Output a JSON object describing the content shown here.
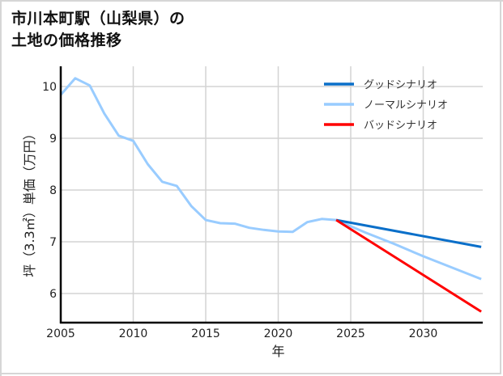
{
  "title": {
    "line1": "市川本町駅（山梨県）の",
    "line2": "土地の価格推移"
  },
  "chart_data": {
    "type": "line",
    "title": "市川本町駅（山梨県）の土地の価格推移",
    "xlabel": "年",
    "ylabel": "坪（3.3㎡）単価（万円）",
    "xlim": [
      2005,
      2034
    ],
    "ylim": [
      5.4,
      10.4
    ],
    "x_ticks": [
      2005,
      2010,
      2015,
      2020,
      2025,
      2030
    ],
    "y_ticks": [
      6,
      7,
      8,
      9,
      10
    ],
    "grid": true,
    "legend_position": "upper right",
    "series": [
      {
        "name": "グッドシナリオ",
        "color": "#0a6fc9",
        "x": [
          2024,
          2034
        ],
        "values": [
          7.42,
          6.9
        ]
      },
      {
        "name": "ノーマルシナリオ",
        "color": "#99ccff",
        "x": [
          2005,
          2006,
          2007,
          2008,
          2009,
          2010,
          2011,
          2012,
          2013,
          2014,
          2015,
          2016,
          2017,
          2018,
          2019,
          2020,
          2021,
          2022,
          2023,
          2024,
          2026,
          2028,
          2030,
          2032,
          2034
        ],
        "values": [
          9.84,
          10.16,
          10.02,
          9.48,
          9.05,
          8.95,
          8.5,
          8.16,
          8.08,
          7.69,
          7.42,
          7.36,
          7.35,
          7.27,
          7.23,
          7.2,
          7.19,
          7.38,
          7.44,
          7.42,
          7.18,
          6.96,
          6.72,
          6.5,
          6.28
        ]
      },
      {
        "name": "バッドシナリオ",
        "color": "#ff0000",
        "x": [
          2024,
          2034
        ],
        "values": [
          7.42,
          5.65
        ]
      }
    ]
  },
  "legend": [
    {
      "label": "グッドシナリオ",
      "color": "#0a6fc9"
    },
    {
      "label": "ノーマルシナリオ",
      "color": "#99ccff"
    },
    {
      "label": "バッドシナリオ",
      "color": "#ff0000"
    }
  ],
  "axes": {
    "xlabel": "年",
    "ylabel": "坪（3.3㎡）単価（万円）",
    "x_tick_labels": [
      "2005",
      "2010",
      "2015",
      "2020",
      "2025",
      "2030"
    ],
    "y_tick_labels": [
      "6",
      "7",
      "8",
      "9",
      "10"
    ]
  }
}
